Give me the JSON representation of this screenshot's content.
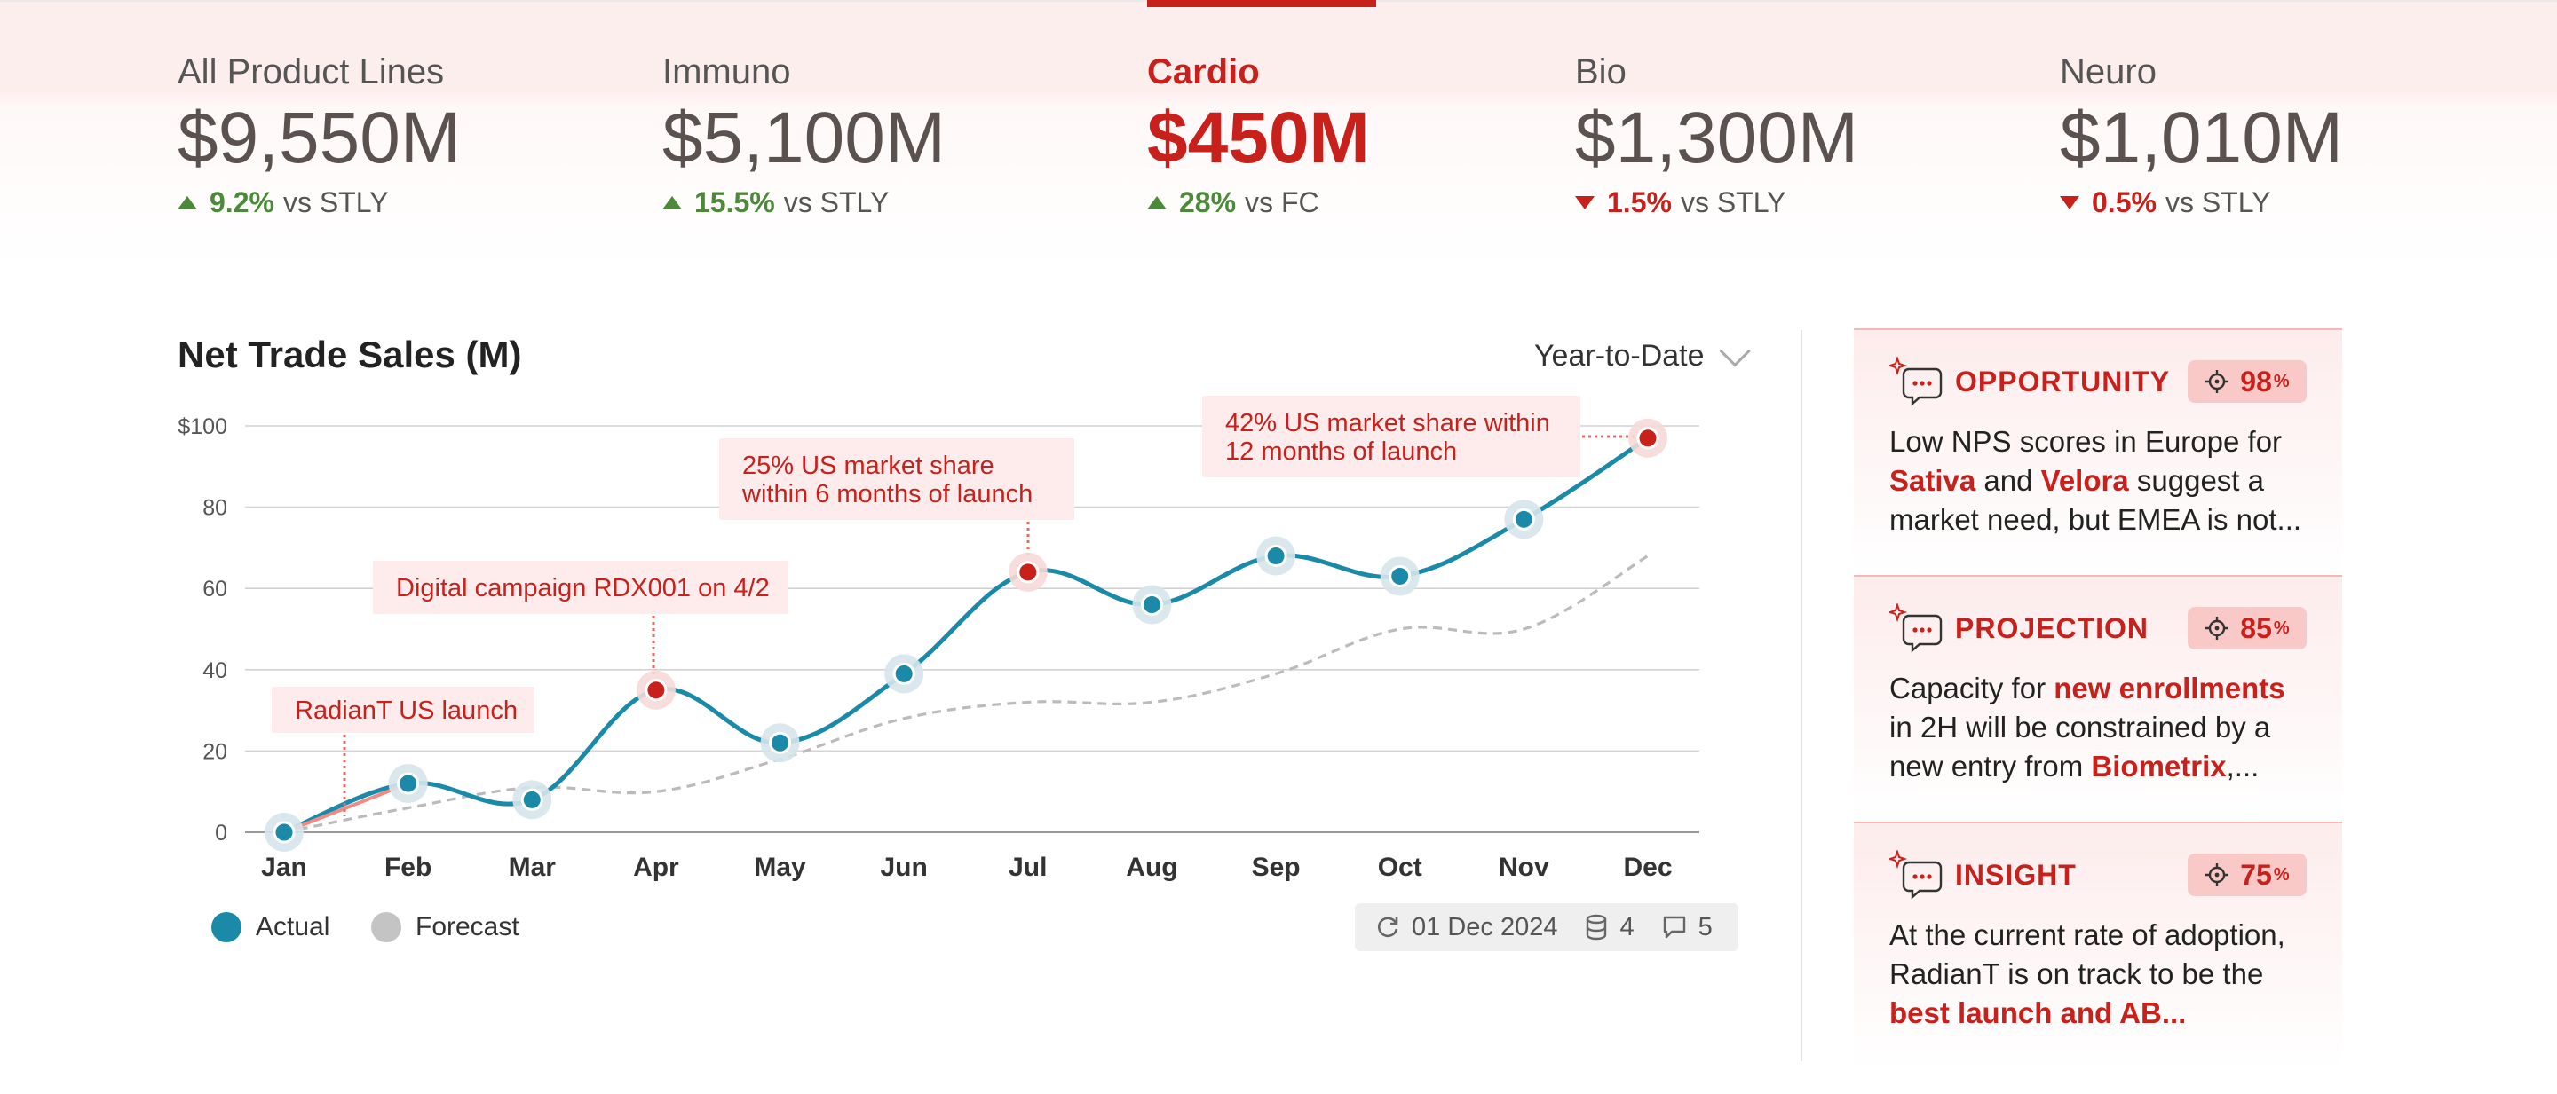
{
  "kpis": [
    {
      "label": "All Product Lines",
      "value": "$9,550M",
      "delta": "9.2%",
      "direction": "up",
      "compare": "vs STLY"
    },
    {
      "label": "Immuno",
      "value": "$5,100M",
      "delta": "15.5%",
      "direction": "up",
      "compare": "vs STLY"
    },
    {
      "label": "Cardio",
      "value": "$450M",
      "delta": "28%",
      "direction": "up",
      "compare": "vs FC",
      "active": true
    },
    {
      "label": "Bio",
      "value": "$1,300M",
      "delta": "1.5%",
      "direction": "down",
      "compare": "vs STLY"
    },
    {
      "label": "Neuro",
      "value": "$1,010M",
      "delta": "0.5%",
      "direction": "down",
      "compare": "vs STLY"
    }
  ],
  "chart_header": {
    "title": "Net Trade Sales (M)",
    "range": "Year-to-Date"
  },
  "chart_data": {
    "type": "line",
    "title": "Net Trade Sales (M)",
    "categories": [
      "Jan",
      "Feb",
      "Mar",
      "Apr",
      "May",
      "Jun",
      "Jul",
      "Aug",
      "Sep",
      "Oct",
      "Nov",
      "Dec"
    ],
    "y_ticks": [
      "$100",
      "80",
      "60",
      "40",
      "20",
      "0"
    ],
    "ylim": [
      0,
      100
    ],
    "grid": true,
    "series": [
      {
        "name": "Actual",
        "color": "#1a8aa8",
        "values": [
          0,
          12,
          8,
          35,
          22,
          39,
          64,
          56,
          68,
          63,
          77,
          97
        ]
      },
      {
        "name": "Forecast",
        "color": "#bbbbbb",
        "values": [
          0,
          6,
          11,
          10,
          18,
          28,
          32,
          32,
          39,
          50,
          50,
          68
        ]
      }
    ],
    "highlighted_months": [
      "Apr",
      "Jul",
      "Dec"
    ],
    "annotations": [
      {
        "month": "Jan",
        "lines": [
          "RadianT US launch"
        ]
      },
      {
        "month": "Apr",
        "lines": [
          "Digital campaign RDX001 on 4/2"
        ]
      },
      {
        "month": "Jul",
        "lines": [
          "25% US market share",
          "within 6 months of launch"
        ]
      },
      {
        "month": "Dec",
        "lines": [
          "42% US market share within",
          "12 months of launch"
        ]
      }
    ]
  },
  "legend": {
    "actual": "Actual",
    "forecast": "Forecast"
  },
  "meta": {
    "date": "01 Dec 2024",
    "sources": "4",
    "comments": "5"
  },
  "cards": [
    {
      "title": "OPPORTUNITY",
      "confidence": "98",
      "segments": [
        {
          "t": "Low NPS scores in Europe for "
        },
        {
          "t": "Sativa",
          "h": true
        },
        {
          "t": " and "
        },
        {
          "t": "Velora",
          "h": true
        },
        {
          "t": " suggest a market need, but EMEA is not..."
        }
      ]
    },
    {
      "title": "PROJECTION",
      "confidence": "85",
      "segments": [
        {
          "t": "Capacity for "
        },
        {
          "t": "new enrollments",
          "h": true
        },
        {
          "t": " in 2H will be constrained by a new entry from "
        },
        {
          "t": "Biometrix",
          "h": true
        },
        {
          "t": ",..."
        }
      ]
    },
    {
      "title": "INSIGHT",
      "confidence": "75",
      "segments": [
        {
          "t": "At the current rate of adoption, RadianT is on track to be the "
        },
        {
          "t": "best launch and AB...",
          "h": true
        }
      ]
    }
  ],
  "colors": {
    "accent": "#c8211c",
    "actual": "#1a8aa8",
    "forecast": "#bbbbbb",
    "positive": "#4c8a3a"
  }
}
